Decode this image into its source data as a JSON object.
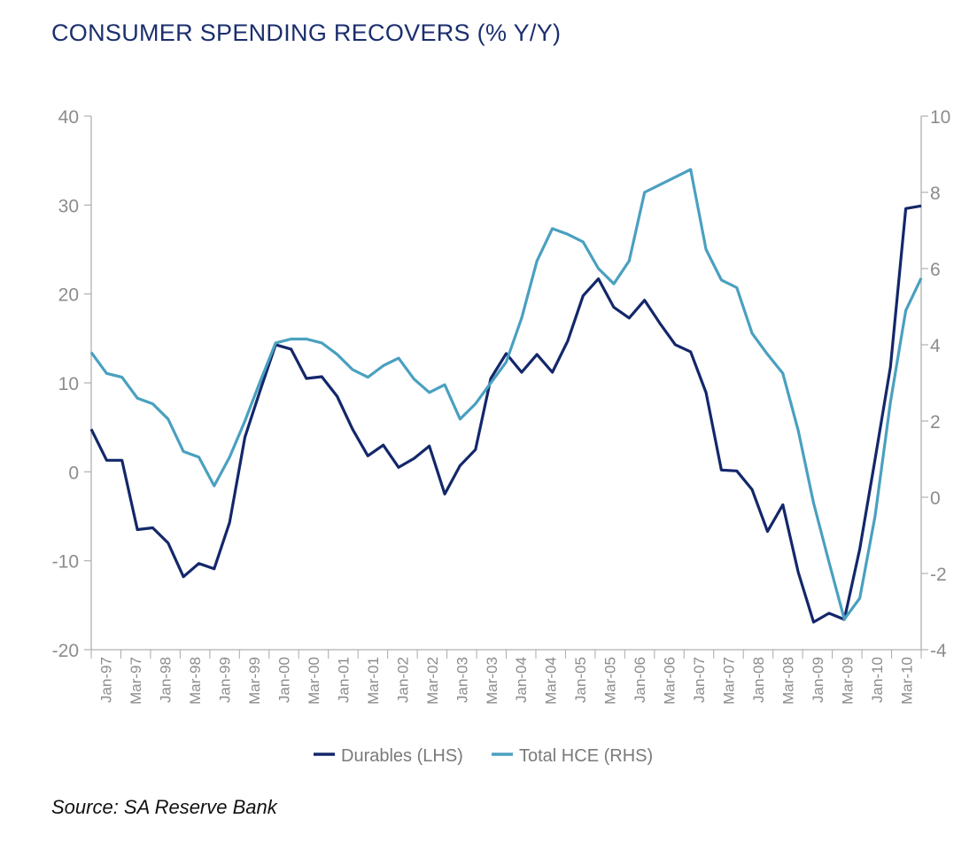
{
  "title": "CONSUMER SPENDING RECOVERS (% Y/Y)",
  "source": "Source: SA Reserve Bank",
  "colors": {
    "durables": "#13276a",
    "total_hce": "#4aa0c0",
    "axis": "#b0b0b0",
    "tick_text": "#8c8c8c"
  },
  "chart_data": {
    "type": "line",
    "title": "CONSUMER SPENDING RECOVERS (% Y/Y)",
    "x_tick_labels": [
      "Jan-97",
      "Mar-97",
      "Jan-98",
      "Mar-98",
      "Jan-99",
      "Mar-99",
      "Jan-00",
      "Mar-00",
      "Jan-01",
      "Mar-01",
      "Jan-02",
      "Mar-02",
      "Jan-03",
      "Mar-03",
      "Jan-04",
      "Mar-04",
      "Jan-05",
      "Mar-05",
      "Jan-06",
      "Mar-06",
      "Jan-07",
      "Mar-07",
      "Jan-08",
      "Mar-08",
      "Jan-09",
      "Mar-09",
      "Jan-10",
      "Mar-10"
    ],
    "left_axis": {
      "ylim": [
        -20,
        40
      ],
      "ticks": [
        "40",
        "30",
        "20",
        "10",
        "0",
        "-10",
        "-20"
      ]
    },
    "right_axis": {
      "ylim": [
        -4,
        10
      ],
      "ticks": [
        "10",
        "8",
        "6",
        "4",
        "2",
        "0",
        "-2",
        "-4"
      ]
    },
    "grid": false,
    "legend_position": "bottom",
    "series": [
      {
        "name": "Durables (LHS)",
        "axis": "left",
        "values": [
          4.8,
          1.3,
          1.3,
          -6.5,
          -6.3,
          -8.0,
          -11.8,
          -10.3,
          -10.9,
          -5.7,
          3.9,
          9.2,
          14.3,
          13.8,
          10.5,
          10.7,
          8.5,
          4.8,
          1.8,
          3.0,
          0.5,
          1.5,
          2.9,
          -2.5,
          0.7,
          2.5,
          10.5,
          13.3,
          11.2,
          13.2,
          11.2,
          14.7,
          19.8,
          21.7,
          18.5,
          17.3,
          19.3,
          16.7,
          14.3,
          13.5,
          8.9,
          0.2,
          0.1,
          -2.0,
          -6.7,
          -3.7,
          -11.3,
          -16.9,
          -15.9,
          -16.6,
          -8.7,
          1.4,
          11.8,
          29.6,
          29.9
        ]
      },
      {
        "name": "Total HCE (RHS)",
        "axis": "right",
        "values": [
          3.8,
          3.25,
          3.15,
          2.6,
          2.45,
          2.05,
          1.2,
          1.05,
          0.3,
          1.05,
          2.0,
          3.05,
          4.05,
          4.15,
          4.15,
          4.05,
          3.75,
          3.35,
          3.15,
          3.45,
          3.65,
          3.1,
          2.75,
          2.95,
          2.05,
          2.45,
          3.0,
          3.55,
          4.7,
          6.2,
          7.05,
          6.9,
          6.7,
          6.0,
          5.6,
          6.2,
          8.0,
          8.2,
          8.4,
          8.6,
          6.5,
          5.7,
          5.5,
          4.3,
          3.75,
          3.25,
          1.75,
          -0.15,
          -1.7,
          -3.2,
          -2.65,
          -0.5,
          2.5,
          4.9,
          5.75
        ]
      }
    ]
  }
}
